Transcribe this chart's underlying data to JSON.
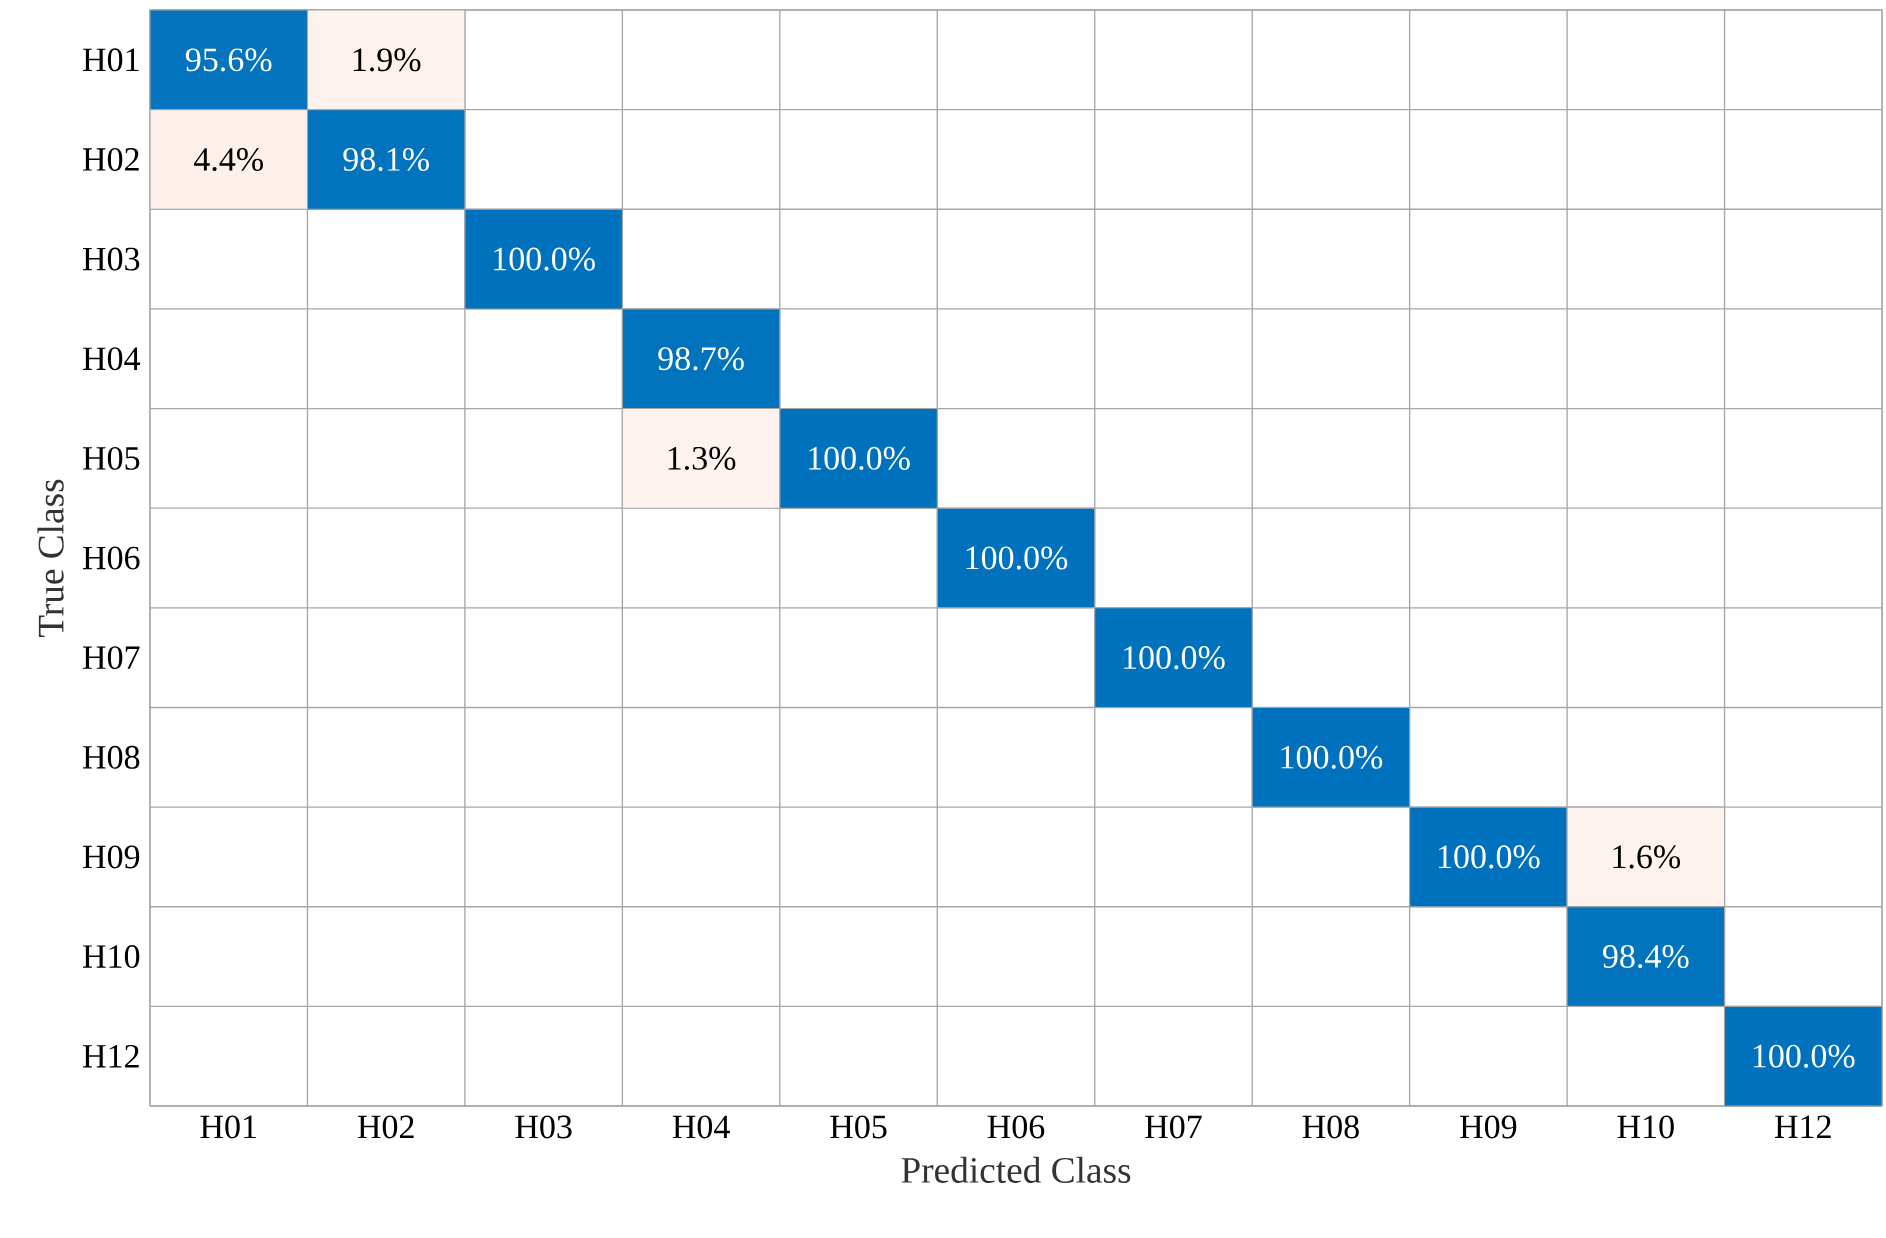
{
  "chart_data": {
    "type": "heatmap",
    "xlabel": "Predicted Class",
    "ylabel": "True Class",
    "categories": [
      "H01",
      "H02",
      "H03",
      "H04",
      "H05",
      "H06",
      "H07",
      "H08",
      "H09",
      "H10",
      "H12"
    ],
    "y_categories": [
      "H01",
      "H02",
      "H03",
      "H04",
      "H05",
      "H06",
      "H07",
      "H08",
      "H09",
      "H10",
      "H12"
    ],
    "cells": [
      [
        95.6,
        1.9,
        null,
        null,
        null,
        null,
        null,
        null,
        null,
        null,
        null
      ],
      [
        4.4,
        98.1,
        null,
        null,
        null,
        null,
        null,
        null,
        null,
        null,
        null
      ],
      [
        null,
        null,
        100.0,
        null,
        null,
        null,
        null,
        null,
        null,
        null,
        null
      ],
      [
        null,
        null,
        null,
        98.7,
        null,
        null,
        null,
        null,
        null,
        null,
        null
      ],
      [
        null,
        null,
        null,
        1.3,
        100.0,
        null,
        null,
        null,
        null,
        null,
        null
      ],
      [
        null,
        null,
        null,
        null,
        null,
        100.0,
        null,
        null,
        null,
        null,
        null
      ],
      [
        null,
        null,
        null,
        null,
        null,
        null,
        100.0,
        null,
        null,
        null,
        null
      ],
      [
        null,
        null,
        null,
        null,
        null,
        null,
        null,
        100.0,
        null,
        null,
        null
      ],
      [
        null,
        null,
        null,
        null,
        null,
        null,
        null,
        null,
        100.0,
        1.6,
        null
      ],
      [
        null,
        null,
        null,
        null,
        null,
        null,
        null,
        null,
        null,
        98.4,
        null
      ],
      [
        null,
        null,
        null,
        null,
        null,
        null,
        null,
        null,
        null,
        null,
        100.0
      ]
    ],
    "cell_labels": [
      [
        "95.6%",
        "1.9%",
        null,
        null,
        null,
        null,
        null,
        null,
        null,
        null,
        null
      ],
      [
        "4.4%",
        "98.1%",
        null,
        null,
        null,
        null,
        null,
        null,
        null,
        null,
        null
      ],
      [
        null,
        null,
        "100.0%",
        null,
        null,
        null,
        null,
        null,
        null,
        null,
        null
      ],
      [
        null,
        null,
        null,
        "98.7%",
        null,
        null,
        null,
        null,
        null,
        null,
        null
      ],
      [
        null,
        null,
        null,
        "1.3%",
        "100.0%",
        null,
        null,
        null,
        null,
        null,
        null
      ],
      [
        null,
        null,
        null,
        null,
        null,
        "100.0%",
        null,
        null,
        null,
        null,
        null
      ],
      [
        null,
        null,
        null,
        null,
        null,
        null,
        "100.0%",
        null,
        null,
        null,
        null
      ],
      [
        null,
        null,
        null,
        null,
        null,
        null,
        null,
        "100.0%",
        null,
        null,
        null
      ],
      [
        null,
        null,
        null,
        null,
        null,
        null,
        null,
        null,
        "100.0%",
        "1.6%",
        null
      ],
      [
        null,
        null,
        null,
        null,
        null,
        null,
        null,
        null,
        null,
        "98.4%",
        null
      ],
      [
        null,
        null,
        null,
        null,
        null,
        null,
        null,
        null,
        null,
        null,
        "100.0%"
      ]
    ]
  }
}
